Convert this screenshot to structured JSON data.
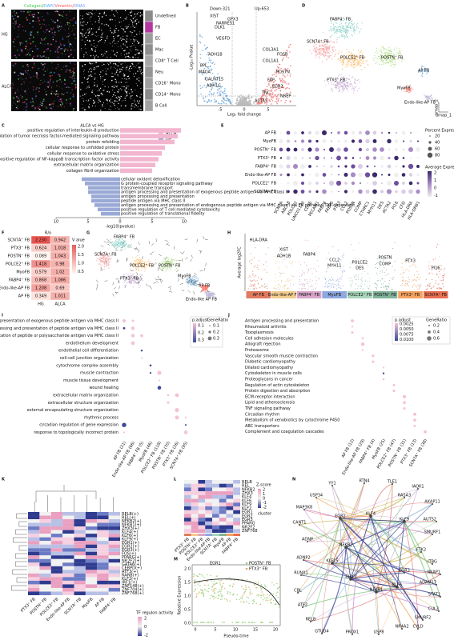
{
  "panels": {
    "A": {
      "label": "A",
      "stain": [
        "CollagenI/",
        "DAPI/",
        "Vimentin/",
        "DNA1"
      ],
      "rows": [
        "HG",
        "ALCA"
      ],
      "legend": [
        "Undefined",
        "FB",
        "EC",
        "Mac",
        "CD8⁺ T Cell",
        "Neu",
        "CD16⁺ Mono",
        "CD14⁺ Mono",
        "B Cell"
      ]
    },
    "B": {
      "label": "B",
      "down": "Down:321",
      "up": "Up:653",
      "genes_down": [
        "XIST",
        "GPX3",
        "RARRES1",
        "DLK1",
        "VEGFD",
        "ADH1B",
        "PPL",
        "MAOA",
        "GALNT15",
        "ADH1C"
      ],
      "genes_up": [
        "COL3A1",
        "FOSB",
        "COL1A1",
        "POSTN",
        "FAP",
        "EGR2",
        "TNC",
        "NREP",
        "ACTA1"
      ],
      "ylabel": "-Log₁₀ Pvalue",
      "xlabel": "Log₂ fold change",
      "xticks": [
        "-5",
        "0",
        "5"
      ]
    },
    "C": {
      "label": "C",
      "title": "ALCA vs HG",
      "legend": [
        "ALCA",
        "HG"
      ],
      "alca_terms": [
        "positive regulation of interleukin-8 production",
        "positive regulation of tumor necrosis factor-mediated signaling pathway",
        "protein refolding",
        "cellular response to unfolded protein",
        "cellular response to oxidative stress",
        "positive regulation of NF-kappaB transcription factor activity",
        "extracellular matrix organization",
        "collagen fibril organization"
      ],
      "alca_values": [
        9.5,
        9,
        8.5,
        7,
        6.5,
        6,
        5.5,
        5
      ],
      "hg_terms": [
        "cellular oxidant detoxification",
        "G protein-coupled receptor signaling pathway",
        "transmembrane transport",
        "antigen processing and presentation of exogenous peptide antigen via MHC class II",
        "antigen processing and presentation",
        "peptide antigen via MHC class II",
        "antigen processing and presentation of endogenous peptide antigen via MHC class I via ER pathway, TAP-dependent",
        "positive regulation of T cell mediated cytotoxicity",
        "positive regulation of translational fidelity"
      ],
      "hg_values": [
        -6,
        -5.5,
        -5,
        -5,
        -4.5,
        -4.5,
        -4,
        -3.5,
        -3
      ],
      "xlim": [
        -10,
        10
      ],
      "xticks": [
        {
          "value": -10,
          "label": "10"
        },
        {
          "value": -5,
          "label": "5"
        },
        0,
        5,
        10
      ],
      "xlabel": "-log10(pvalue)"
    },
    "D": {
      "label": "D",
      "clusters": [
        "FABP4⁺ FB",
        "SCN7A⁺ FB",
        "POLCE2⁺ FB",
        "POSTN⁺ FB",
        "PTX3⁺ FB",
        "AP FB",
        "MyoFB",
        "Endo-like-AP FB"
      ],
      "axes": [
        "umap_1",
        "umap_2"
      ]
    },
    "E": {
      "label": "E",
      "rows": [
        "AP FB",
        "MyoFB",
        "POSTN⁺ FB",
        "PTX3⁺ FB",
        "FABP4⁺ FB",
        "Endo-like-AP FB",
        "POLCE2⁺ FB",
        "SCN7A⁺ FB"
      ],
      "genes": [
        "SCN7A",
        "ABCA8",
        "POLCE2",
        "LINC01133",
        "CD36",
        "PECAM1",
        "FABP4",
        "FABP5",
        "PTX3",
        "CCL2",
        "POSTN",
        "COMP",
        "CTHRC1",
        "MYH11",
        "DES",
        "ACTA2",
        "PI16",
        "CFD",
        "HLA-DRA",
        "HLA-DRB1"
      ],
      "size_title": "Percent Expressed",
      "size_ticks": [
        "20",
        "40",
        "60",
        "80"
      ],
      "color_title": "Average Expression",
      "color_ticks": [
        "2",
        "1",
        "0",
        "-1"
      ]
    },
    "F": {
      "label": "F",
      "title": "R/o",
      "rows": [
        "SCN7A⁺ FB",
        "PTX3⁺ FB",
        "POSTN⁺ FB",
        "POLCE2⁺ FB",
        "MyoFB",
        "FABP4⁺ FB",
        "Endo-like-AP FB",
        "AP FB"
      ],
      "cells": [
        [
          "2.230",
          "0.942"
        ],
        [
          "0.624",
          "1.018"
        ],
        [
          "0.089",
          "1.043"
        ],
        [
          "1.418",
          "0.98"
        ],
        [
          "0.579",
          "1.02"
        ],
        [
          "0.868",
          "1.086"
        ],
        [
          "1.208",
          "0.69"
        ],
        [
          "0.349",
          "1.011"
        ]
      ],
      "columns": [
        "HG",
        "ALCA"
      ],
      "legend_title": "V alue",
      "legend_ticks": [
        "2.0",
        "1.5",
        "1.0",
        "0.5"
      ]
    },
    "G": {
      "label": "G",
      "clusters": [
        "FABP4⁺ FB",
        "SCN7A⁺ FB",
        "POLCE2⁺ FB",
        "POSTN⁺ FB",
        "PTX3⁺ FB",
        "MyoFB",
        "AP FB",
        "Endo-like AP FB"
      ]
    },
    "H": {
      "label": "H",
      "ylabel": "Average log2FC",
      "categories": [
        "AP FB",
        "Endo-like-AP FB",
        "FABP4⁺ FB",
        "MyoFB",
        "POLCE2⁺ FB",
        "POSTN⁺ FB",
        "PTX3⁺ FB",
        "SCN7A⁺ FB"
      ],
      "genes": [
        "HLA-DRA",
        "XIST",
        "ADH1B",
        "FABP4",
        "CCL2",
        "MYH11",
        "DES",
        "POLCE2",
        "POSTN",
        "COMP",
        "PTX3",
        "PI16"
      ]
    },
    "I": {
      "label": "I",
      "terms": [
        "antigen processing and presentation of exogenous peptide antigen via MHC class II",
        "antigen processing and presentation of peptide antigen via MHC class II",
        "antigen processing and presentation of peptide or polysaccharide antigen via MHC class II",
        "endothelium development",
        "endothelial cell differentiation",
        "cell-cell junction organization",
        "cytochrome complex assembly",
        "muscle contraction",
        "muscle tissue development",
        "wound healing",
        "extracellular matrix organization",
        "extracellular structure organization",
        "external encapsulating structure organization",
        "rhythmic process",
        "circadian regulation of gene expression",
        "response to topologically incorrect protein"
      ],
      "columns": [
        "AP FB (21)",
        "Endo-like-AP FB (66)",
        "FABP4⁺ FB (5)",
        "MyoFB (46)",
        "POLCE2⁺ FB (118)",
        "POSTN⁺ FB (70)",
        "PTX3⁺ FB (26)",
        "SCN7A⁺ FB (95)"
      ],
      "color_title": "p.adjust",
      "color_ticks": [
        "0.1",
        "0.2",
        "0.3"
      ],
      "size_title": "GeneRatio",
      "size_ticks": [
        "0.1",
        "0.2",
        "0.3"
      ]
    },
    "J": {
      "label": "J",
      "terms": [
        "Antigen processing and presentation",
        "Rheumatoid arthritis",
        "Toxoplasmosis",
        "Cell adhesion molecules",
        "Allograft rejection",
        "Proteasome",
        "Vascular smooth muscle contraction",
        "Diabetic cardiomyopathy",
        "Dilated cardiomyopathy",
        "Cytoskeleton in muscle cells",
        "Proteoglycans in cancer",
        "Regulation of actin cytoskeleton",
        "Protein digestion and absorption",
        "ECM-receptor interaction",
        "Lipid and atherosclerosis",
        "TNF signaling pathway",
        "Circadian rhythm",
        "Metabolism of xenobiotics by cytochrome P450",
        "ABC transporters",
        "Complement and coagulation cascades"
      ],
      "columns": [
        "AP FB (12)",
        "Endo-like-AP FB (29)",
        "FABP4⁺ FB (4)",
        "MyoFB (25)",
        "POLCE2⁺ FB (47)",
        "POSTN⁺ FB (31)",
        "PTX3⁺ FB (13)",
        "SCN7A⁺ FB (38)"
      ],
      "color_title": "p.adjust",
      "color_ticks": [
        "0.0025",
        "0.0050",
        "0.0075",
        "0.0100"
      ],
      "size_title": "GeneRatio",
      "size_ticks": [
        "0.2",
        "0.4",
        "0.6"
      ]
    },
    "K": {
      "label": "K",
      "rows": [
        "RELB(+)",
        "REL(+)",
        "NFKB2(+)",
        "NFKB1(+)",
        "ZHX3(+)",
        "KLF4(+)",
        "KLF6(+)",
        "KLF9(+)",
        "EGR1(+)",
        "EGR2(+)",
        "EGR3(+)",
        "FOS(+)",
        "PPARG(+)",
        "NR2F2(+)",
        "GATA6(+)",
        "CEBPD(+)",
        "ATF3(+)",
        "RARB(+)",
        "KLF2(+)",
        "IRF1(+)",
        "ZNF148(+)",
        "ZNF704(+)",
        "ZNF768(+)"
      ],
      "columns": [
        "PTX3⁺ FB",
        "POSTN⁺ FB",
        "POLCE2⁺ FB",
        "Endo-like-AP FB",
        "SCN7A⁺ FB",
        "MyoFB",
        "AP FB",
        "FABP4⁺ FB"
      ],
      "legend_title": "TF regulon activity",
      "legend_ticks": [
        "2",
        "0",
        "-2"
      ]
    },
    "L": {
      "label": "L",
      "rows": [
        "RELB",
        "REL",
        "NFKB2",
        "ZHX3",
        "KLF4",
        "KLF6",
        "KLF9",
        "KLF2",
        "EGR1",
        "EGR2",
        "EGR3",
        "PPARG",
        "NR2F2",
        "ZNF768"
      ],
      "columns": [
        "PTX3⁺ FB",
        "POSTN⁺ FB",
        "POLCE2⁺ FB",
        "Endo-like-AP FB",
        "SCN7A⁺ FB",
        "MyoFB",
        "AP FB",
        "FABP4⁺ FB"
      ],
      "legend_title": "Z-score",
      "legend_ticks": [
        "2",
        "1",
        "0",
        "-1",
        "-2"
      ],
      "cluster_title": "cluster"
    },
    "M": {
      "label": "M",
      "title": "EGR1",
      "legend": [
        "POSTN⁺ FB",
        "PTX3⁺ FB"
      ],
      "ylabel": "Relative Expression",
      "xlabel": "Pseudo-time",
      "xticks": [
        "0",
        "5",
        "10",
        "15",
        "20"
      ],
      "yticks": [
        "0.0",
        "0.5",
        "1.0",
        "1.5",
        "2.0"
      ]
    },
    "N": {
      "label": "N",
      "nodes": [
        "YY1",
        "RTN4",
        "TLE1",
        "IAOK1",
        "RASA3",
        "AKAP11",
        "USP34",
        "MAP3K8",
        "AUTS2",
        "SMURF1",
        "CANT1",
        "ADNP",
        "EGR2",
        "KLF4",
        "KLF9",
        "NFKB2",
        "FTK2",
        "ITBG",
        "ADNP2",
        "KLF15",
        "ZHX3",
        "RUNX1",
        "CBL",
        "ATF2",
        "RELB",
        "GTUD4",
        "PROX1",
        "USP8",
        "NR4A2",
        "CYLD",
        "SMURF2",
        "CUL3",
        "STAT1",
        "ADAM17",
        "NKAP1",
        "NFKB1",
        "KLF6",
        "EGR3"
      ]
    }
  }
}
